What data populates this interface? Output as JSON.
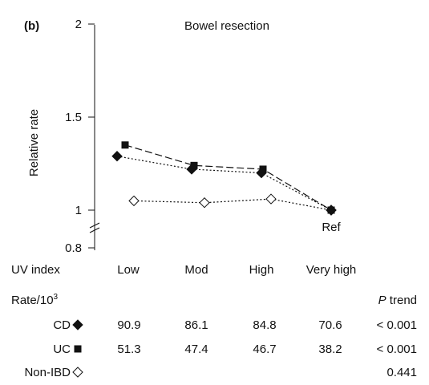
{
  "panel_label": "(b)",
  "chart_data": {
    "type": "line",
    "title": "Bowel resection",
    "ylabel": "Relative rate",
    "xlabel": "UV index",
    "categories": [
      "Low",
      "Mod",
      "High",
      "Very high"
    ],
    "reference_label": "Ref",
    "yticks": [
      "2",
      "1.5",
      "1",
      "0.8"
    ],
    "ytick_values": [
      2,
      1.5,
      1,
      0.8
    ],
    "ylim": [
      0.8,
      2
    ],
    "grid": false,
    "legend": "none",
    "series": [
      {
        "name": "CD",
        "marker": "filled-diamond",
        "line_style": "dotted",
        "values": [
          1.29,
          1.22,
          1.2,
          1.0
        ]
      },
      {
        "name": "UC",
        "marker": "filled-square",
        "line_style": "dashed",
        "values": [
          1.35,
          1.24,
          1.22,
          1.0
        ]
      },
      {
        "name": "Non-IBD",
        "marker": "open-diamond",
        "line_style": "dotted",
        "values": [
          1.05,
          1.04,
          1.06,
          1.0
        ]
      }
    ]
  },
  "table": {
    "rate_label_main": "Rate/10",
    "rate_label_sup": "3",
    "ptrend_label": "P",
    "ptrend_label_rest": " trend",
    "rows": [
      {
        "name": "CD",
        "marker": "filled-diamond",
        "values": [
          "90.9",
          "86.1",
          "84.8",
          "70.6"
        ],
        "ptrend": "< 0.001"
      },
      {
        "name": "UC",
        "marker": "filled-square",
        "values": [
          "51.3",
          "47.4",
          "46.7",
          "38.2"
        ],
        "ptrend": "< 0.001"
      },
      {
        "name": "Non-IBD",
        "marker": "open-diamond",
        "values": [],
        "ptrend": "0.441"
      }
    ]
  }
}
